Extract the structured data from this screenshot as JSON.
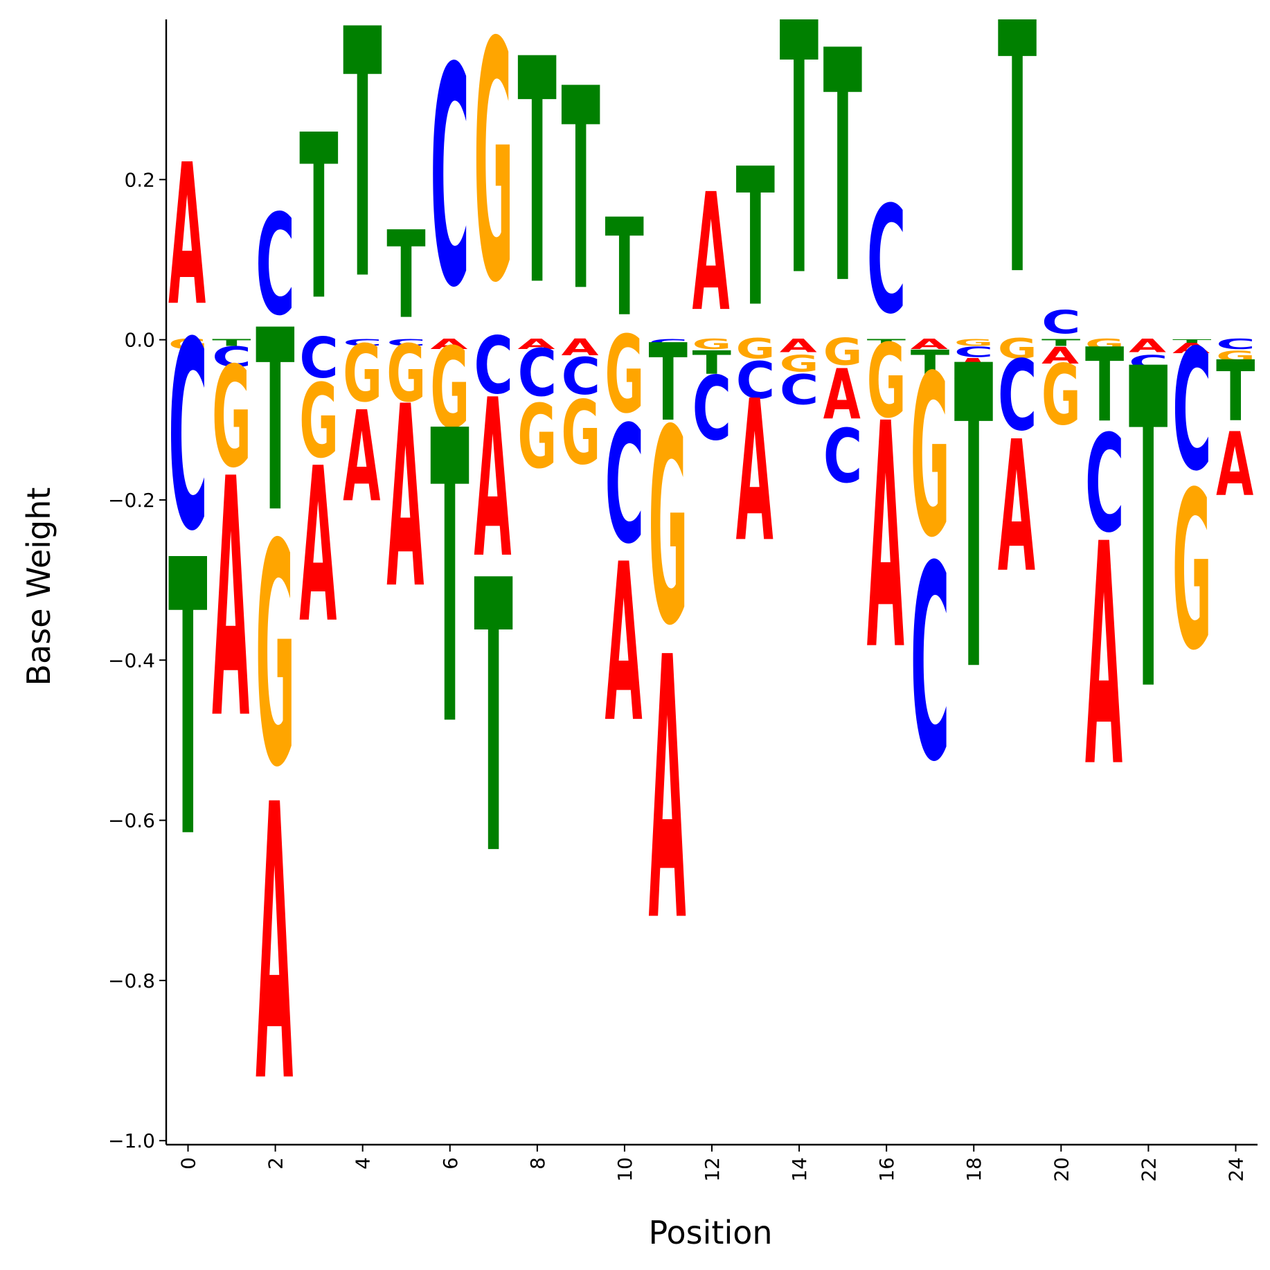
{
  "chart_data": {
    "type": "sequence-logo",
    "xlabel": "Position",
    "ylabel": "Base Weight",
    "xlim": [
      -0.5,
      24.5
    ],
    "ylim": [
      -1.005,
      0.4
    ],
    "xticks": [
      0,
      2,
      4,
      6,
      8,
      10,
      12,
      14,
      16,
      18,
      20,
      22,
      24
    ],
    "yticks": [
      -1.0,
      -0.8,
      -0.6,
      -0.4,
      -0.2,
      0.0,
      0.2
    ],
    "ytick_labels": [
      "−1.0",
      "−0.8",
      "−0.6",
      "−0.4",
      "−0.2",
      "0.0",
      "0.2"
    ],
    "xtick_labels": [
      "0",
      "2",
      "4",
      "6",
      "8",
      "10",
      "12",
      "14",
      "16",
      "18",
      "20",
      "22",
      "24"
    ],
    "grid": false,
    "colors": {
      "A": "#ff0000",
      "C": "#0000ff",
      "G": "#ffa500",
      "T": "#008000"
    },
    "positions": [
      {
        "pos": 0,
        "A": 0.21,
        "C": -0.28,
        "G": -0.015,
        "T": -0.41
      },
      {
        "pos": 1,
        "A": -0.355,
        "C": -0.03,
        "G": -0.15,
        "T": -0.01
      },
      {
        "pos": 2,
        "A": -0.41,
        "C": 0.15,
        "G": -0.33,
        "T": -0.27
      },
      {
        "pos": 3,
        "A": -0.23,
        "C": -0.06,
        "G": -0.11,
        "T": 0.245
      },
      {
        "pos": 4,
        "A": -0.135,
        "C": -0.01,
        "G": -0.085,
        "T": 0.37
      },
      {
        "pos": 5,
        "A": -0.27,
        "C": -0.01,
        "G": -0.085,
        "T": 0.13
      },
      {
        "pos": 6,
        "A": -0.015,
        "C": 0.325,
        "G": -0.12,
        "T": -0.435
      },
      {
        "pos": 7,
        "A": -0.235,
        "C": -0.085,
        "G": 0.355,
        "T": -0.405
      },
      {
        "pos": 8,
        "A": -0.015,
        "C": -0.07,
        "G": -0.095,
        "T": 0.335
      },
      {
        "pos": 9,
        "A": -0.025,
        "C": -0.055,
        "G": -0.095,
        "T": 0.3
      },
      {
        "pos": 10,
        "A": -0.235,
        "C": -0.175,
        "G": -0.115,
        "T": 0.145
      },
      {
        "pos": 11,
        "A": -0.39,
        "C": -0.01,
        "G": -0.29,
        "T": -0.115
      },
      {
        "pos": 12,
        "A": 0.175,
        "C": -0.095,
        "G": -0.015,
        "T": -0.035
      },
      {
        "pos": 13,
        "A": -0.21,
        "C": -0.055,
        "G": -0.03,
        "T": 0.205
      },
      {
        "pos": 14,
        "A": -0.02,
        "C": -0.045,
        "G": -0.025,
        "T": 0.39
      },
      {
        "pos": 15,
        "A": -0.075,
        "C": -0.08,
        "G": -0.04,
        "T": 0.345
      },
      {
        "pos": 16,
        "A": -0.335,
        "C": 0.16,
        "G": -0.11,
        "T": -0.01
      },
      {
        "pos": 17,
        "A": -0.015,
        "C": -0.29,
        "G": -0.24,
        "T": -0.04
      },
      {
        "pos": 18,
        "A": -0.03,
        "C": -0.015,
        "G": -0.01,
        "T": -0.45
      },
      {
        "pos": 19,
        "A": -0.195,
        "C": -0.105,
        "G": -0.03,
        "T": 0.395
      },
      {
        "pos": 20,
        "A": -0.025,
        "C": 0.035,
        "G": -0.09,
        "T": -0.01
      },
      {
        "pos": 21,
        "A": -0.33,
        "C": -0.145,
        "G": -0.015,
        "T": -0.11
      },
      {
        "pos": 22,
        "A": -0.02,
        "C": -0.02,
        "G": -0.02,
        "T": -0.475
      },
      {
        "pos": 23,
        "A": -0.015,
        "C": -0.18,
        "G": -0.235,
        "T": -0.005
      },
      {
        "pos": 24,
        "A": -0.095,
        "C": -0.015,
        "G": -0.015,
        "T": -0.09
      }
    ]
  }
}
